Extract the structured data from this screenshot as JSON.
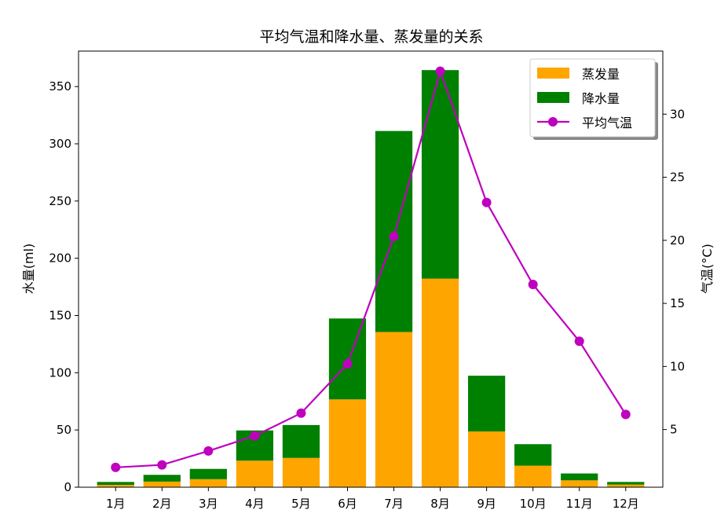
{
  "chart_data": {
    "type": "bar",
    "title": "平均气温和降水量、蒸发量的关系",
    "categories": [
      "1月",
      "2月",
      "3月",
      "4月",
      "5月",
      "6月",
      "7月",
      "8月",
      "9月",
      "10月",
      "11月",
      "12月"
    ],
    "series": [
      {
        "name": "蒸发量",
        "kind": "bar",
        "color": "#ffa500",
        "axis": "left",
        "values": [
          2.0,
          4.9,
          7.0,
          23.2,
          25.6,
          76.7,
          135.6,
          182.2,
          48.7,
          18.8,
          6.0,
          2.3
        ]
      },
      {
        "name": "降水量",
        "kind": "bar",
        "color": "#008000",
        "axis": "left",
        "stacked_on": "蒸发量",
        "values": [
          2.6,
          5.9,
          9.0,
          26.4,
          28.7,
          70.7,
          175.6,
          182.2,
          48.7,
          18.8,
          6.0,
          2.3
        ]
      },
      {
        "name": "平均气温",
        "kind": "line",
        "color": "#bf00bf",
        "axis": "right",
        "marker": "circle",
        "values": [
          2.0,
          2.2,
          3.3,
          4.5,
          6.3,
          10.2,
          20.3,
          33.4,
          23.0,
          16.5,
          12.0,
          6.2
        ]
      }
    ],
    "ylabel": "水量(ml)",
    "ylim": [
      0,
      381
    ],
    "yticks": [
      0,
      50,
      100,
      150,
      200,
      250,
      300,
      350
    ],
    "ylabel_right": "气温(°C)",
    "ylim_right": [
      0.43,
      35.0
    ],
    "yticks_right": [
      5,
      10,
      15,
      20,
      25,
      30
    ],
    "legend": {
      "placement": "top-right",
      "entries": [
        "蒸发量",
        "降水量",
        "平均气温"
      ]
    },
    "grid": false
  }
}
